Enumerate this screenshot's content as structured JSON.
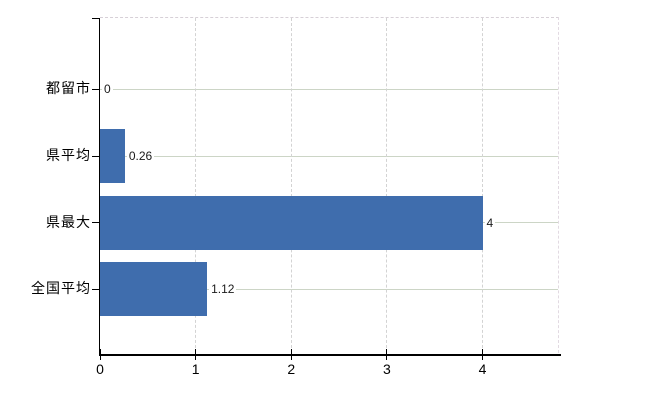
{
  "chart_data": {
    "type": "bar",
    "orientation": "horizontal",
    "title": "",
    "xlabel": "",
    "ylabel": "",
    "categories": [
      "都留市",
      "県平均",
      "県最大",
      "全国平均"
    ],
    "values": [
      0,
      0.26,
      4,
      1.12
    ],
    "value_labels": [
      "0",
      "0.26",
      "4",
      "1.12"
    ],
    "xlim": [
      0,
      4.8
    ],
    "xticks": [
      0,
      1,
      2,
      3,
      4
    ],
    "xtick_labels": [
      "0",
      "1",
      "2",
      "3",
      "4"
    ],
    "grid": {
      "horizontal": "solid",
      "vertical": "dashed",
      "top_border": "dashed",
      "right_border": "dashed"
    },
    "legend": "none"
  },
  "colors": {
    "background": "#ffffff",
    "bar": "#3f6dad",
    "h_grid": "#ccd5c6",
    "v_grid": "#d3d3d3",
    "frame_dash": "#d7d0d7",
    "axis": "#000000",
    "category_text": "#000000",
    "tick_text": "#000000",
    "value_text": "#1a1a1a"
  }
}
